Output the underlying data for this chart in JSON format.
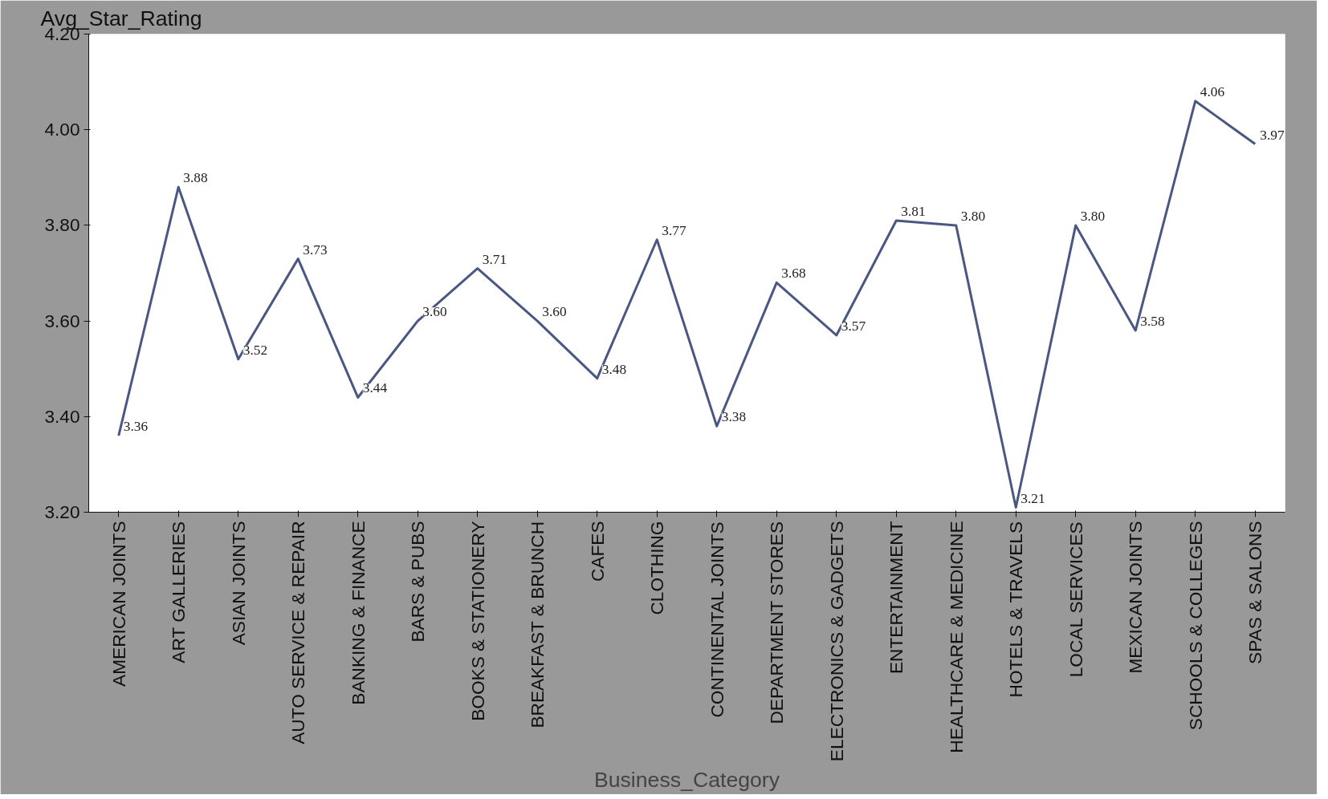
{
  "chart_data": {
    "type": "line",
    "xlabel": "Business_Category",
    "ylabel": "Avg_Star_Rating",
    "categories": [
      "AMERICAN JOINTS",
      "ART GALLERIES",
      "ASIAN JOINTS",
      "AUTO SERVICE & REPAIR",
      "BANKING & FINANCE",
      "BARS & PUBS",
      "BOOKS & STATIONERY",
      "BREAKFAST & BRUNCH",
      "CAFES",
      "CLOTHING",
      "CONTINENTAL JOINTS",
      "DEPARTMENT STORES",
      "ELECTRONICS & GADGETS",
      "ENTERTAINMENT",
      "HEALTHCARE & MEDICINE",
      "HOTELS & TRAVELS",
      "LOCAL SERVICES",
      "MEXICAN JOINTS",
      "SCHOOLS & COLLEGES",
      "SPAS & SALONS"
    ],
    "series": [
      {
        "color": "#4a5783",
        "values": [
          3.36,
          3.88,
          3.52,
          3.73,
          3.44,
          3.6,
          3.71,
          3.6,
          3.48,
          3.77,
          3.38,
          3.68,
          3.57,
          3.81,
          3.8,
          3.21,
          3.8,
          3.58,
          4.06,
          3.97
        ]
      }
    ],
    "value_labels": [
      "3.36",
      "3.88",
      "3.52",
      "3.73",
      "3.44",
      "3.60",
      "3.71",
      "3.60",
      "3.48",
      "3.77",
      "3.38",
      "3.68",
      "3.57",
      "3.81",
      "3.80",
      "3.21",
      "3.80",
      "3.58",
      "4.06",
      "3.97"
    ],
    "ylim": [
      3.2,
      4.2
    ],
    "yticks": [
      {
        "value": 3.2,
        "label": "3.20"
      },
      {
        "value": 3.4,
        "label": "3.40"
      },
      {
        "value": 3.6,
        "label": "3.60"
      },
      {
        "value": 3.8,
        "label": "3.80"
      },
      {
        "value": 4.0,
        "label": "4.00"
      },
      {
        "value": 4.2,
        "label": "4.20"
      }
    ],
    "marker": "none",
    "line_style": "solid"
  }
}
